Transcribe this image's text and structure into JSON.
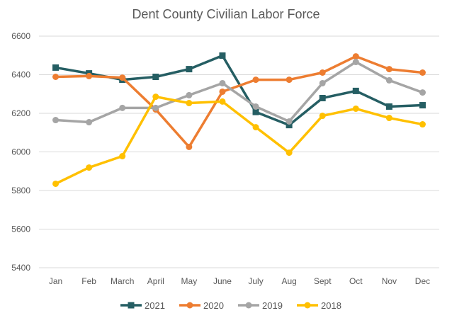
{
  "chart_data": {
    "type": "line",
    "title": "Dent County Civilian Labor Force",
    "categories": [
      "Jan",
      "Feb",
      "March",
      "April",
      "May",
      "June",
      "July",
      "Aug",
      "Sept",
      "Oct",
      "Nov",
      "Dec"
    ],
    "ylim": [
      5400,
      6600
    ],
    "yticks": [
      5400,
      5600,
      5800,
      6000,
      6200,
      6400,
      6600
    ],
    "grid": true,
    "legend": "bottom",
    "series": [
      {
        "name": "2021",
        "color": "#255E63",
        "marker": "square",
        "values": [
          6437,
          6407,
          6374,
          6389,
          6429,
          6499,
          6207,
          6139,
          6279,
          6316,
          6235,
          6242
        ]
      },
      {
        "name": "2020",
        "color": "#ED7D31",
        "marker": "circle",
        "values": [
          6389,
          6393,
          6385,
          6220,
          6026,
          6312,
          6374,
          6374,
          6411,
          6495,
          6429,
          6411
        ]
      },
      {
        "name": "2019",
        "color": "#A5A5A5",
        "marker": "circle",
        "values": [
          6165,
          6154,
          6228,
          6228,
          6294,
          6356,
          6235,
          6158,
          6356,
          6466,
          6371,
          6308
        ]
      },
      {
        "name": "2018",
        "color": "#FFC000",
        "marker": "circle",
        "values": [
          5835,
          5919,
          5978,
          6286,
          6253,
          6261,
          6128,
          5996,
          6187,
          6224,
          6176,
          6143
        ]
      }
    ]
  }
}
